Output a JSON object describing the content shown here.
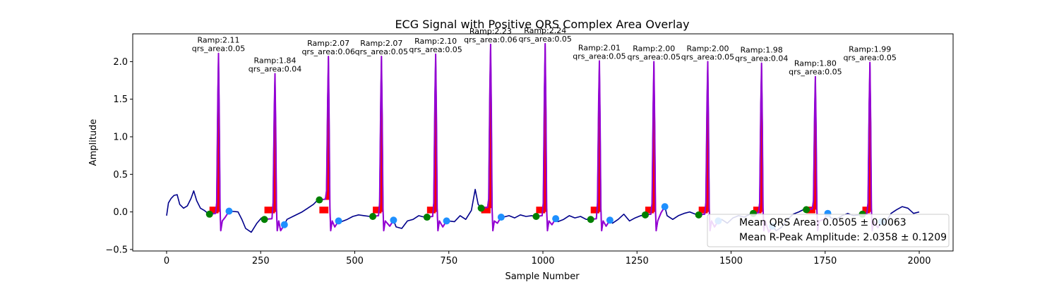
{
  "chart_data": {
    "type": "line",
    "title": "ECG Signal with Positive QRS Complex Area Overlay",
    "xlabel": "Sample Number",
    "ylabel": "Amplitude",
    "xlim": [
      -90,
      2090
    ],
    "ylim": [
      -0.52,
      2.37
    ],
    "xticks": [
      0,
      250,
      500,
      750,
      1000,
      1250,
      1500,
      1750,
      2000
    ],
    "yticks": [
      -0.5,
      0.0,
      0.5,
      1.0,
      1.5,
      2.0
    ],
    "xtick_labels": [
      "0",
      "250",
      "500",
      "750",
      "1000",
      "1250",
      "1500",
      "1750",
      "2000"
    ],
    "ytick_labels": [
      "−0.5",
      "0.0",
      "0.5",
      "1.0",
      "1.5",
      "2.0"
    ],
    "grid": false,
    "colors": {
      "signal": "#00008b",
      "qrs_segment": "#9400d3",
      "qrs_area_fill": "#ff0000",
      "q_point": "#008000",
      "s_point": "#1e90ff"
    },
    "beats": [
      {
        "r": 138,
        "amp": 2.11,
        "area": 0.05,
        "amp_label": "Ramp:2.11",
        "area_label": "qrs_area:0.05",
        "q": [
          114,
          -0.03
        ],
        "s": [
          166,
          0.01
        ]
      },
      {
        "r": 288,
        "amp": 1.84,
        "area": 0.04,
        "amp_label": "Ramp:1.84",
        "area_label": "qrs_area:0.04",
        "q": [
          260,
          -0.1
        ],
        "s": [
          313,
          -0.17
        ]
      },
      {
        "r": 430,
        "amp": 2.07,
        "area": 0.06,
        "amp_label": "Ramp:2.07",
        "area_label": "qrs_area:0.06",
        "q": [
          406,
          0.16
        ],
        "s": [
          457,
          -0.12
        ]
      },
      {
        "r": 571,
        "amp": 2.07,
        "area": 0.05,
        "amp_label": "Ramp:2.07",
        "area_label": "qrs_area:0.05",
        "q": [
          548,
          -0.06
        ],
        "s": [
          603,
          -0.11
        ]
      },
      {
        "r": 715,
        "amp": 2.1,
        "area": 0.05,
        "amp_label": "Ramp:2.10",
        "area_label": "qrs_area:0.05",
        "q": [
          692,
          -0.07
        ],
        "s": [
          744,
          -0.12
        ]
      },
      {
        "r": 861,
        "amp": 2.23,
        "area": 0.06,
        "amp_label": "Ramp:2.23",
        "area_label": "qrs_area:0.06",
        "q": [
          836,
          0.05
        ],
        "s": [
          889,
          -0.07
        ]
      },
      {
        "r": 1006,
        "amp": 2.24,
        "area": 0.05,
        "amp_label": "Ramp:2.24",
        "area_label": "qrs_area:0.05",
        "q": [
          982,
          -0.06
        ],
        "s": [
          1034,
          -0.09
        ]
      },
      {
        "r": 1150,
        "amp": 2.01,
        "area": 0.05,
        "amp_label": "Ramp:2.01",
        "area_label": "qrs_area:0.05",
        "q": [
          1127,
          -0.1
        ],
        "s": [
          1178,
          -0.11
        ]
      },
      {
        "r": 1295,
        "amp": 2.0,
        "area": 0.05,
        "amp_label": "Ramp:2.00",
        "area_label": "qrs_area:0.05",
        "q": [
          1272,
          -0.04
        ],
        "s": [
          1324,
          0.07
        ]
      },
      {
        "r": 1438,
        "amp": 2.0,
        "area": 0.05,
        "amp_label": "Ramp:2.00",
        "area_label": "qrs_area:0.05",
        "q": [
          1414,
          -0.04
        ],
        "s": [
          1466,
          -0.12
        ]
      },
      {
        "r": 1581,
        "amp": 1.98,
        "area": 0.04,
        "amp_label": "Ramp:1.98",
        "area_label": "qrs_area:0.04",
        "q": [
          1559,
          -0.02
        ],
        "s": [
          1610,
          -0.19
        ]
      },
      {
        "r": 1724,
        "amp": 1.8,
        "area": 0.05,
        "amp_label": "Ramp:1.80",
        "area_label": "qrs_area:0.05",
        "q": [
          1700,
          0.03
        ],
        "s": [
          1757,
          -0.02
        ]
      },
      {
        "r": 1869,
        "amp": 1.99,
        "area": 0.05,
        "amp_label": "Ramp:1.99",
        "area_label": "qrs_area:0.05",
        "q": [
          1849,
          -0.03
        ],
        "s": [
          1900,
          -0.13
        ]
      }
    ],
    "baseline_points": [
      [
        0,
        -0.05
      ],
      [
        5,
        0.12
      ],
      [
        12,
        0.18
      ],
      [
        20,
        0.22
      ],
      [
        28,
        0.23
      ],
      [
        35,
        0.1
      ],
      [
        45,
        0.05
      ],
      [
        55,
        0.08
      ],
      [
        65,
        0.18
      ],
      [
        72,
        0.28
      ],
      [
        80,
        0.15
      ],
      [
        90,
        0.05
      ],
      [
        100,
        0.02
      ],
      [
        110,
        -0.02
      ],
      [
        170,
        0.01
      ],
      [
        190,
        0.0
      ],
      [
        200,
        -0.1
      ],
      [
        210,
        -0.22
      ],
      [
        225,
        -0.27
      ],
      [
        240,
        -0.15
      ],
      [
        252,
        -0.08
      ],
      [
        320,
        -0.1
      ],
      [
        340,
        -0.05
      ],
      [
        360,
        0.0
      ],
      [
        375,
        0.05
      ],
      [
        390,
        0.1
      ],
      [
        400,
        0.15
      ],
      [
        465,
        -0.13
      ],
      [
        480,
        -0.1
      ],
      [
        495,
        -0.06
      ],
      [
        510,
        -0.04
      ],
      [
        525,
        -0.05
      ],
      [
        540,
        -0.06
      ],
      [
        610,
        -0.2
      ],
      [
        625,
        -0.22
      ],
      [
        640,
        -0.12
      ],
      [
        655,
        -0.1
      ],
      [
        670,
        -0.05
      ],
      [
        685,
        -0.07
      ],
      [
        750,
        -0.12
      ],
      [
        765,
        -0.13
      ],
      [
        780,
        -0.05
      ],
      [
        795,
        -0.1
      ],
      [
        810,
        0.02
      ],
      [
        820,
        0.3
      ],
      [
        828,
        0.1
      ],
      [
        895,
        -0.07
      ],
      [
        910,
        -0.05
      ],
      [
        925,
        -0.08
      ],
      [
        940,
        -0.04
      ],
      [
        955,
        -0.06
      ],
      [
        970,
        -0.05
      ],
      [
        1040,
        -0.13
      ],
      [
        1055,
        -0.1
      ],
      [
        1070,
        -0.05
      ],
      [
        1085,
        -0.08
      ],
      [
        1100,
        -0.06
      ],
      [
        1115,
        -0.1
      ],
      [
        1185,
        -0.15
      ],
      [
        1200,
        -0.1
      ],
      [
        1215,
        -0.03
      ],
      [
        1230,
        -0.12
      ],
      [
        1245,
        -0.08
      ],
      [
        1260,
        -0.05
      ],
      [
        1330,
        -0.05
      ],
      [
        1345,
        -0.1
      ],
      [
        1360,
        -0.05
      ],
      [
        1375,
        -0.02
      ],
      [
        1390,
        0.0
      ],
      [
        1405,
        -0.03
      ],
      [
        1475,
        -0.1
      ],
      [
        1490,
        -0.15
      ],
      [
        1505,
        -0.08
      ],
      [
        1520,
        -0.05
      ],
      [
        1535,
        -0.07
      ],
      [
        1550,
        -0.03
      ],
      [
        1620,
        -0.25
      ],
      [
        1635,
        -0.2
      ],
      [
        1650,
        -0.1
      ],
      [
        1665,
        -0.03
      ],
      [
        1680,
        0.0
      ],
      [
        1692,
        0.03
      ],
      [
        1765,
        -0.08
      ],
      [
        1780,
        -0.1
      ],
      [
        1795,
        -0.05
      ],
      [
        1810,
        -0.02
      ],
      [
        1825,
        -0.05
      ],
      [
        1840,
        -0.04
      ],
      [
        1910,
        -0.15
      ],
      [
        1925,
        -0.02
      ],
      [
        1940,
        0.03
      ],
      [
        1955,
        0.07
      ],
      [
        1970,
        0.05
      ],
      [
        1985,
        -0.02
      ],
      [
        2000,
        0.0
      ]
    ],
    "legend": {
      "placement": "lower-right",
      "entries": [
        "Mean QRS Area: 0.0505 ± 0.0063",
        "Mean R-Peak Amplitude: 2.0358 ± 0.1209"
      ]
    }
  }
}
